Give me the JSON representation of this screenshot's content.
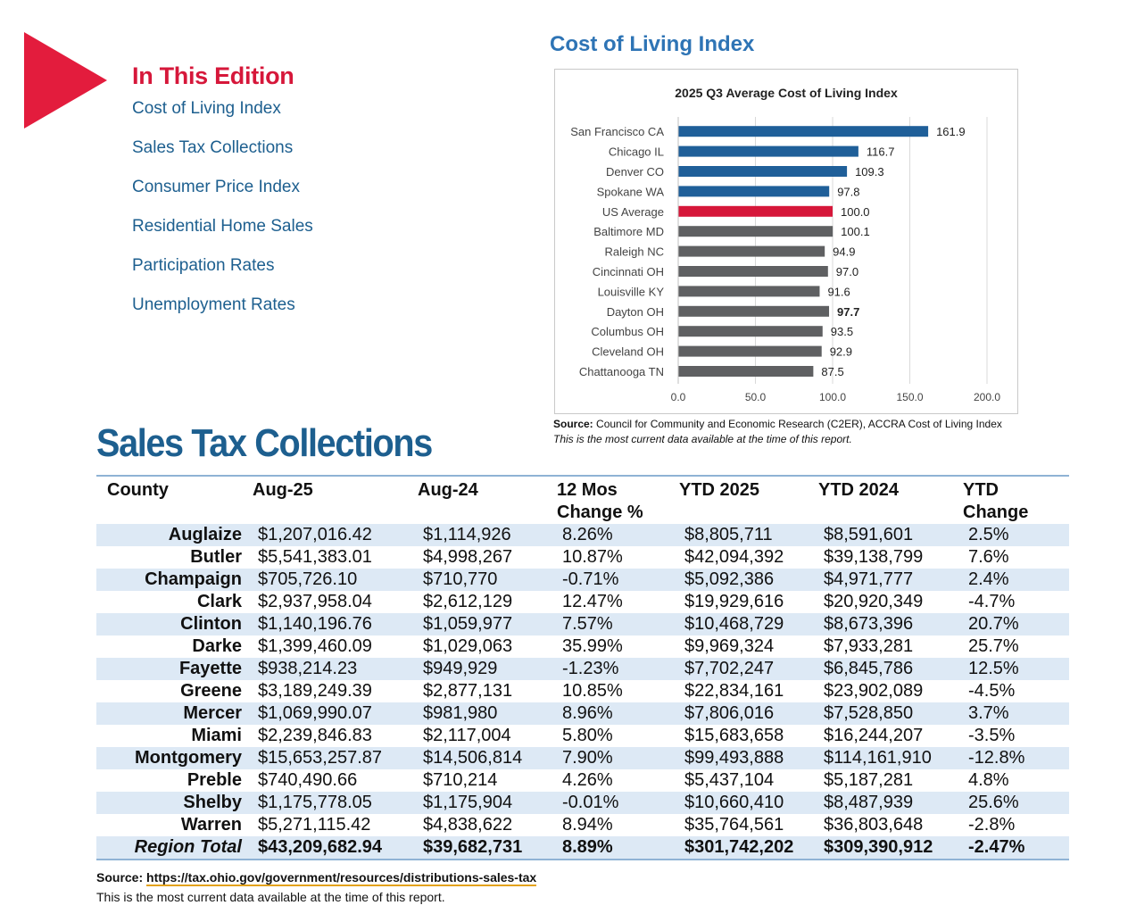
{
  "edition": {
    "heading": "In This Edition",
    "items": [
      "Cost of Living Index",
      "Sales Tax Collections",
      "Consumer Price Index",
      "Residential Home Sales",
      "Participation Rates",
      "Unemployment Rates"
    ]
  },
  "col": {
    "section_title": "Cost of Living Index",
    "source_label": "Source:",
    "source_text": " Council for Community and Economic Research (C2ER), ACCRA Cost of Living Index",
    "note": "This is the most current data available at the time of this report."
  },
  "colors": {
    "blue_bar": "#1f5f99",
    "red_bar": "#d6173a",
    "gray_bar": "#5f6062",
    "accent_red": "#e31c3d",
    "header_blue": "#1d5f8f"
  },
  "chart_data": {
    "type": "bar",
    "orientation": "horizontal",
    "title": "2025 Q3 Average Cost of Living Index",
    "categories": [
      "San Francisco CA",
      "Chicago IL",
      "Denver CO",
      "Spokane WA",
      "US Average",
      "Baltimore MD",
      "Raleigh NC",
      "Cincinnati OH",
      "Louisville KY",
      "Dayton OH",
      "Columbus OH",
      "Cleveland OH",
      "Chattanooga TN"
    ],
    "values": [
      161.9,
      116.7,
      109.3,
      97.8,
      100.0,
      100.1,
      94.9,
      97.0,
      91.6,
      97.7,
      93.5,
      92.9,
      87.5
    ],
    "labels": [
      "161.9",
      "116.7",
      "109.3",
      "97.8",
      "100.0",
      "100.1",
      "94.9",
      "97.0",
      "91.6",
      "97.7",
      "93.5",
      "92.9",
      "87.5"
    ],
    "bar_colors": [
      "blue",
      "blue",
      "blue",
      "blue",
      "red",
      "gray",
      "gray",
      "gray",
      "gray",
      "gray",
      "gray",
      "gray",
      "gray"
    ],
    "bold_label_index": 9,
    "xlim": [
      0,
      200
    ],
    "xticks": [
      "0.0",
      "50.0",
      "100.0",
      "150.0",
      "200.0"
    ],
    "grid": true
  },
  "sales_tax": {
    "title": "Sales Tax Collections",
    "headers": [
      "County",
      "Aug-25",
      "Aug-24",
      "12 Mos\nChange %",
      "YTD 2025",
      "YTD 2024",
      "YTD\nChange"
    ],
    "rows": [
      [
        "Auglaize",
        "$1,207,016.42",
        "$1,114,926",
        "8.26%",
        "$8,805,711",
        "$8,591,601",
        "2.5%"
      ],
      [
        "Butler",
        "$5,541,383.01",
        "$4,998,267",
        "10.87%",
        "$42,094,392",
        "$39,138,799",
        "7.6%"
      ],
      [
        "Champaign",
        "$705,726.10",
        "$710,770",
        "-0.71%",
        "$5,092,386",
        "$4,971,777",
        "2.4%"
      ],
      [
        "Clark",
        "$2,937,958.04",
        "$2,612,129",
        "12.47%",
        "$19,929,616",
        "$20,920,349",
        "-4.7%"
      ],
      [
        "Clinton",
        "$1,140,196.76",
        "$1,059,977",
        "7.57%",
        "$10,468,729",
        "$8,673,396",
        "20.7%"
      ],
      [
        "Darke",
        "$1,399,460.09",
        "$1,029,063",
        "35.99%",
        "$9,969,324",
        "$7,933,281",
        "25.7%"
      ],
      [
        "Fayette",
        "$938,214.23",
        "$949,929",
        "-1.23%",
        "$7,702,247",
        "$6,845,786",
        "12.5%"
      ],
      [
        "Greene",
        "$3,189,249.39",
        "$2,877,131",
        "10.85%",
        "$22,834,161",
        "$23,902,089",
        "-4.5%"
      ],
      [
        "Mercer",
        "$1,069,990.07",
        "$981,980",
        "8.96%",
        "$7,806,016",
        "$7,528,850",
        "3.7%"
      ],
      [
        "Miami",
        "$2,239,846.83",
        "$2,117,004",
        "5.80%",
        "$15,683,658",
        "$16,244,207",
        "-3.5%"
      ],
      [
        "Montgomery",
        "$15,653,257.87",
        "$14,506,814",
        "7.90%",
        "$99,493,888",
        "$114,161,910",
        "-12.8%"
      ],
      [
        "Preble",
        "$740,490.66",
        "$710,214",
        "4.26%",
        "$5,437,104",
        "$5,187,281",
        "4.8%"
      ],
      [
        "Shelby",
        "$1,175,778.05",
        "$1,175,904",
        "-0.01%",
        "$10,660,410",
        "$8,487,939",
        "25.6%"
      ],
      [
        "Warren",
        "$5,271,115.42",
        "$4,838,622",
        "8.94%",
        "$35,764,561",
        "$36,803,648",
        "-2.8%"
      ]
    ],
    "total": [
      "Region Total",
      "$43,209,682.94",
      "$39,682,731",
      "8.89%",
      "$301,742,202",
      "$309,390,912",
      "-2.47%"
    ],
    "source_label": "Source: ",
    "source_link": "https://tax.ohio.gov/government/resources/distributions-sales-tax",
    "note": "This is the most current data available at the time of this report."
  }
}
